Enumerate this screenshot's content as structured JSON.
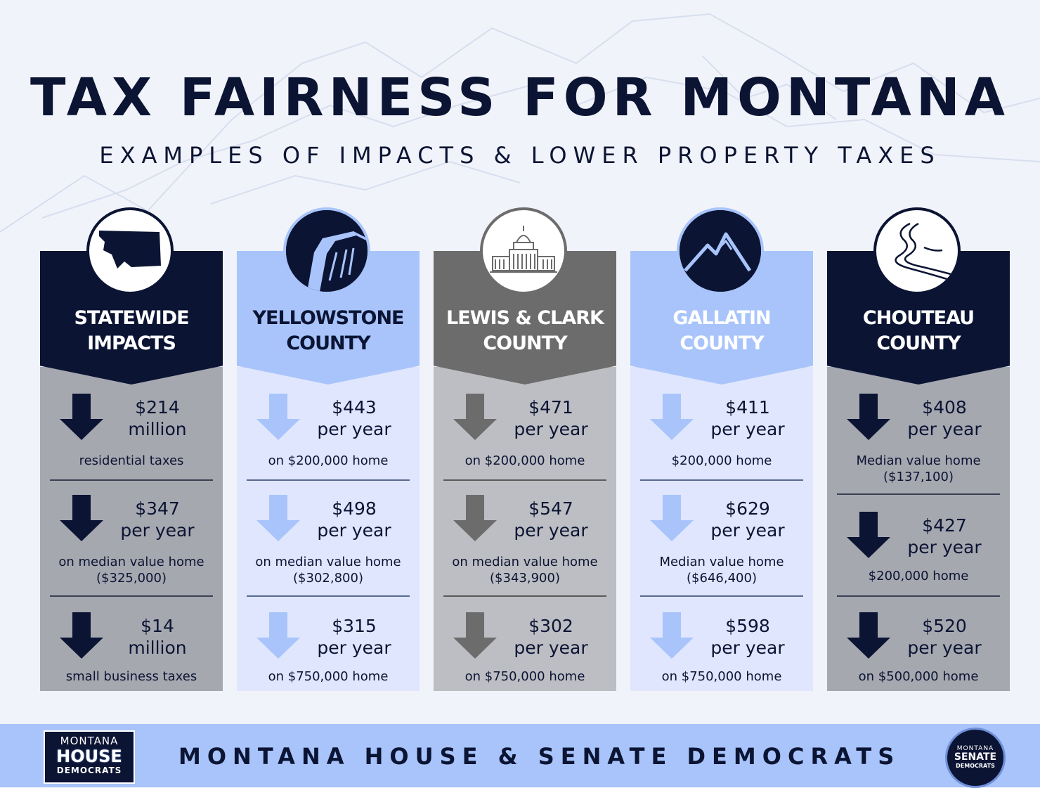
{
  "header": {
    "title": "TAX FAIRNESS FOR MONTANA",
    "subtitle": "EXAMPLES OF IMPACTS & LOWER PROPERTY TAXES"
  },
  "colors": {
    "navy": "#0b1433",
    "light_blue": "#a8c4fb",
    "gray": "#6c6c6c",
    "gray_body": "#a6a8b0"
  },
  "columns": [
    {
      "name_line1": "STATEWIDE",
      "name_line2": "IMPACTS",
      "icon": "montana-map-icon",
      "items": [
        {
          "amount_line1": "$214",
          "amount_line2": "million",
          "desc_line1": "residential taxes",
          "desc_line2": ""
        },
        {
          "amount_line1": "$347",
          "amount_line2": "per year",
          "desc_line1": "on median value home",
          "desc_line2": "($325,000)"
        },
        {
          "amount_line1": "$14",
          "amount_line2": "million",
          "desc_line1": "small business taxes",
          "desc_line2": ""
        }
      ]
    },
    {
      "name_line1": "YELLOWSTONE",
      "name_line2": "COUNTY",
      "icon": "rimrock-cliff-icon",
      "items": [
        {
          "amount_line1": "$443",
          "amount_line2": "per year",
          "desc_line1": "on $200,000 home",
          "desc_line2": ""
        },
        {
          "amount_line1": "$498",
          "amount_line2": "per year",
          "desc_line1": "on median value home",
          "desc_line2": "($302,800)"
        },
        {
          "amount_line1": "$315",
          "amount_line2": "per year",
          "desc_line1": "on $750,000 home",
          "desc_line2": ""
        }
      ]
    },
    {
      "name_line1": "LEWIS & CLARK",
      "name_line2": "COUNTY",
      "icon": "capitol-building-icon",
      "items": [
        {
          "amount_line1": "$471",
          "amount_line2": "per year",
          "desc_line1": "on $200,000 home",
          "desc_line2": ""
        },
        {
          "amount_line1": "$547",
          "amount_line2": "per year",
          "desc_line1": "on median value home",
          "desc_line2": "($343,900)"
        },
        {
          "amount_line1": "$302",
          "amount_line2": "per year",
          "desc_line1": "on $750,000 home",
          "desc_line2": ""
        }
      ]
    },
    {
      "name_line1": "GALLATIN",
      "name_line2": "COUNTY",
      "icon": "mountain-peaks-icon",
      "items": [
        {
          "amount_line1": "$411",
          "amount_line2": "per year",
          "desc_line1": "$200,000 home",
          "desc_line2": ""
        },
        {
          "amount_line1": "$629",
          "amount_line2": "per year",
          "desc_line1": "Median value home",
          "desc_line2": "($646,400)"
        },
        {
          "amount_line1": "$598",
          "amount_line2": "per year",
          "desc_line1": "on $750,000 home",
          "desc_line2": ""
        }
      ]
    },
    {
      "name_line1": "CHOUTEAU",
      "name_line2": "COUNTY",
      "icon": "river-icon",
      "items": [
        {
          "amount_line1": "$408",
          "amount_line2": "per year",
          "desc_line1": "Median value home",
          "desc_line2": "($137,100)"
        },
        {
          "amount_line1": "$427",
          "amount_line2": "per year",
          "desc_line1": "$200,000 home",
          "desc_line2": ""
        },
        {
          "amount_line1": "$520",
          "amount_line2": "per year",
          "desc_line1": "on $500,000 home",
          "desc_line2": ""
        }
      ]
    }
  ],
  "footer": {
    "text": "MONTANA HOUSE & SENATE DEMOCRATS",
    "house_logo": {
      "line1": "MONTANA",
      "line2": "HOUSE",
      "line3": "DEMOCRATS"
    },
    "senate_logo": {
      "line1": "MONTANA",
      "line2": "SENATE",
      "line3": "DEMOCRATS"
    }
  }
}
